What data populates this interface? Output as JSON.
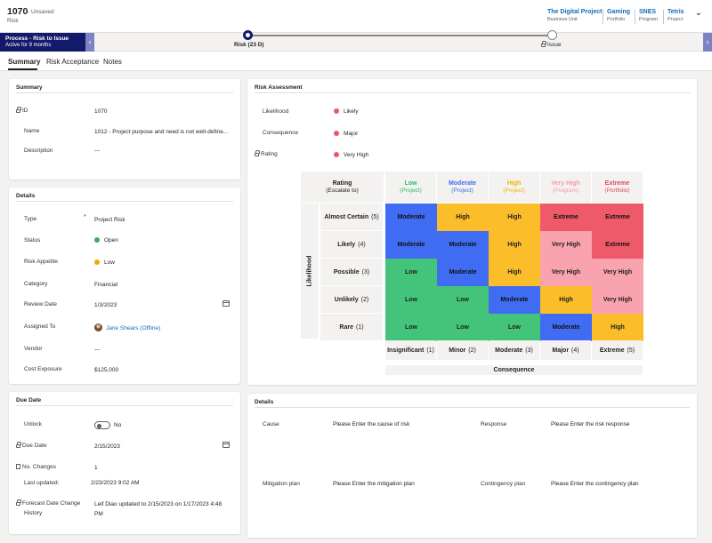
{
  "record": {
    "id": "1070",
    "status": "- Unsaved",
    "type": "Risk"
  },
  "header_fields": [
    {
      "value": "The Digital Project",
      "label": "Business Unit"
    },
    {
      "value": "Gaming",
      "label": "Portfolio"
    },
    {
      "value": "SNES",
      "label": "Program"
    },
    {
      "value": "Tetris",
      "label": "Project"
    }
  ],
  "process": {
    "title": "Process - Risk to Issue",
    "subtitle": "Active for 9 months",
    "stages": [
      {
        "label": "Risk  (23 D)"
      },
      {
        "label": "Issue"
      }
    ]
  },
  "tabs": [
    "Summary",
    "Risk Acceptance",
    "Notes"
  ],
  "summary": {
    "title": "Summary",
    "fields": [
      {
        "label": "ID",
        "value": "1070"
      },
      {
        "label": "Name",
        "value": "1012 - Project purpose and need is not well-define..."
      },
      {
        "label": "Description",
        "value": "---"
      }
    ]
  },
  "details": {
    "title": "Details",
    "type": {
      "label": "Type",
      "value": "Project Risk"
    },
    "status": {
      "label": "Status",
      "value": "Open",
      "color": "#33b25d"
    },
    "appetite": {
      "label": "Risk Appetite",
      "value": "Low",
      "color": "#f2a900"
    },
    "category": {
      "label": "Category",
      "value": "Financial"
    },
    "review": {
      "label": "Review Date",
      "value": "1/3/2023"
    },
    "assigned": {
      "label": "Assigned To",
      "value": "Jane Shears (Offline)"
    },
    "vendor": {
      "label": "Vendor",
      "value": "---"
    },
    "cost": {
      "label": "Cost Exposure",
      "value": "$125,000"
    }
  },
  "due_date": {
    "title": "Due Date",
    "unlock": {
      "label": "Unlock",
      "value": "No"
    },
    "due": {
      "label": "Due Date",
      "value": "2/15/2023"
    },
    "changes": {
      "label": "No. Changes",
      "value": "1"
    },
    "last_updated": {
      "label": "Last updated:",
      "value": "2/23/2023 9:02 AM"
    },
    "history": {
      "label_1": "Forecast Date Change",
      "label_2": "History",
      "value_1": "Leif Diao updated to 2/15/2023 on 1/17/2023 4:48",
      "value_2": "PM"
    }
  },
  "risk_assessment": {
    "title": "Risk Assessment",
    "likelihood": {
      "label": "Likelihood",
      "value": "Likely",
      "color": "#eb5a64"
    },
    "consequence": {
      "label": "Consequence",
      "value": "Major",
      "color": "#eb5a64"
    },
    "rating": {
      "label": "Rating",
      "value": "Very High",
      "color": "#eb5a64"
    },
    "matrix": {
      "rating_header": "Rating",
      "rating_sub": "(Escalate to)",
      "y_axis": "Likelihood",
      "x_axis": "Consequence",
      "columns": [
        {
          "name": "Low",
          "sub": "(Project)",
          "color": "#2dba6b"
        },
        {
          "name": "Moderate",
          "sub": "(Project)",
          "color": "#3e6bf0"
        },
        {
          "name": "High",
          "sub": "(Project)",
          "color": "#f2b400"
        },
        {
          "name": "Very High",
          "sub": "(Program)",
          "color": "#f49aa4"
        },
        {
          "name": "Extreme",
          "sub": "(Portfolio)",
          "color": "#e4455a"
        }
      ],
      "rows": [
        {
          "name": "Almost Certain",
          "n": "(5)"
        },
        {
          "name": "Likely",
          "n": "(4)"
        },
        {
          "name": "Possible",
          "n": "(3)"
        },
        {
          "name": "Unlikely",
          "n": "(2)"
        },
        {
          "name": "Rare",
          "n": "(1)"
        }
      ],
      "consequences": [
        {
          "name": "Insignificant",
          "n": "(1)"
        },
        {
          "name": "Minor",
          "n": "(2)"
        },
        {
          "name": "Moderate",
          "n": "(3)"
        },
        {
          "name": "Major",
          "n": "(4)"
        },
        {
          "name": "Extreme",
          "n": "(5)"
        }
      ],
      "cells": [
        [
          "Moderate",
          "High",
          "High",
          "Extreme",
          "Extreme"
        ],
        [
          "Moderate",
          "Moderate",
          "High",
          "Very High",
          "Extreme"
        ],
        [
          "Low",
          "Moderate",
          "High",
          "Very High",
          "Very High"
        ],
        [
          "Low",
          "Low",
          "Moderate",
          "High",
          "Very High"
        ],
        [
          "Low",
          "Low",
          "Low",
          "Moderate",
          "High"
        ]
      ],
      "level_colors": {
        "Low": "#43c47a",
        "Moderate": "#3f6cf2",
        "High": "#fbbd29",
        "Very High": "#f8a3ae",
        "Extreme": "#ee5a6a"
      }
    }
  },
  "details2": {
    "title": "Details",
    "cause": {
      "label": "Cause",
      "value": "Please Enter the cause of risk"
    },
    "response": {
      "label": "Response",
      "value": "Please Enter the risk response"
    },
    "mitigation": {
      "label": "Mitigation plan",
      "value": "Please Enter the mitigation plan"
    },
    "contingency": {
      "label": "Contingency plan",
      "value": "Please Enter the contingency plan"
    }
  }
}
